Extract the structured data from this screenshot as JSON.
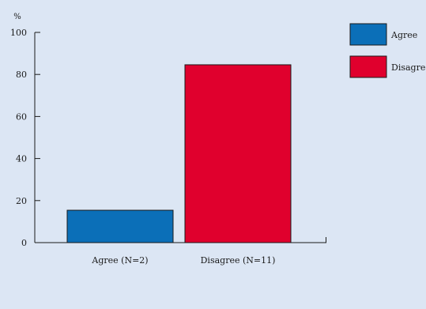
{
  "chart_data": {
    "type": "bar",
    "y_unit": "%",
    "categories": [
      "Agree (N=2)",
      "Disagree (N=11)"
    ],
    "values": [
      15.4,
      84.6
    ],
    "ylim": [
      0,
      100
    ],
    "yticks": [
      0,
      20,
      40,
      60,
      80,
      100
    ],
    "grid": false,
    "legend": {
      "placement": "top-right",
      "entries": [
        {
          "label": "Agree",
          "color": "#0b6fb8"
        },
        {
          "label": "Disagree",
          "color": "#e0002d"
        }
      ]
    },
    "bar_colors": [
      "#0b6fb8",
      "#e0002d"
    ]
  }
}
